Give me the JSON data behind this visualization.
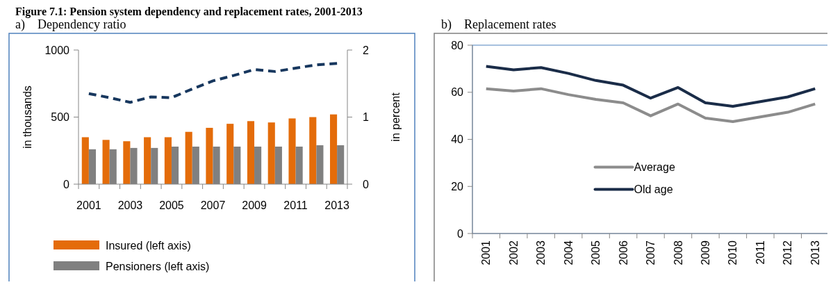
{
  "chart_data": [
    {
      "type": "bar",
      "title": "Figure 7.1: Pension system dependency and replacement rates, 2001-2013",
      "subtitle": "a)    Dependency ratio",
      "ylabel": "in thousands",
      "y2label": "in percent",
      "categories": [
        "2001",
        null,
        "2003",
        null,
        "2005",
        null,
        "2007",
        null,
        "2009",
        null,
        "2011",
        null,
        "2013"
      ],
      "series": [
        {
          "name": "Insured (left axis)",
          "type": "bar",
          "color": "#e46c0a",
          "values": [
            350,
            330,
            320,
            350,
            350,
            390,
            420,
            450,
            470,
            460,
            490,
            500,
            520
          ]
        },
        {
          "name": "Pensioners (left axis)",
          "type": "bar",
          "color": "#808080",
          "values": [
            260,
            260,
            270,
            270,
            280,
            280,
            280,
            280,
            280,
            280,
            280,
            290,
            290
          ]
        },
        {
          "type": "line",
          "axis": "y2",
          "line_style": "dashed",
          "color": "#17375e",
          "values": [
            1.35,
            1.29,
            1.22,
            1.3,
            1.29,
            1.42,
            1.54,
            1.62,
            1.71,
            1.68,
            1.73,
            1.78,
            1.8
          ]
        }
      ],
      "ylim": [
        0,
        1000
      ],
      "yticks": [
        0,
        500,
        1000
      ],
      "y2lim": [
        0,
        2
      ],
      "y2ticks": [
        0,
        1,
        2
      ],
      "legend": "bottom"
    },
    {
      "type": "line",
      "title": "b)    Replacement rates",
      "categories": [
        "2001",
        "2002",
        "2003",
        "2004",
        "2005",
        "2006",
        "2007",
        "2008",
        "2009",
        "2010",
        "2011",
        "2012",
        "2013"
      ],
      "series": [
        {
          "name": "Average",
          "color": "#8c8c8c",
          "values": [
            61.5,
            60.5,
            61.5,
            59,
            57,
            55.5,
            50,
            55,
            49,
            47.5,
            49.5,
            51.5,
            55
          ]
        },
        {
          "name": "Old age",
          "color": "#1a2c48",
          "values": [
            71,
            69.5,
            70.5,
            68,
            65,
            63,
            57.5,
            62,
            55.5,
            54,
            56,
            58,
            61.5
          ]
        }
      ],
      "ylim": [
        0,
        80
      ],
      "yticks": [
        0,
        20,
        40,
        60,
        80
      ],
      "legend": "center"
    }
  ]
}
